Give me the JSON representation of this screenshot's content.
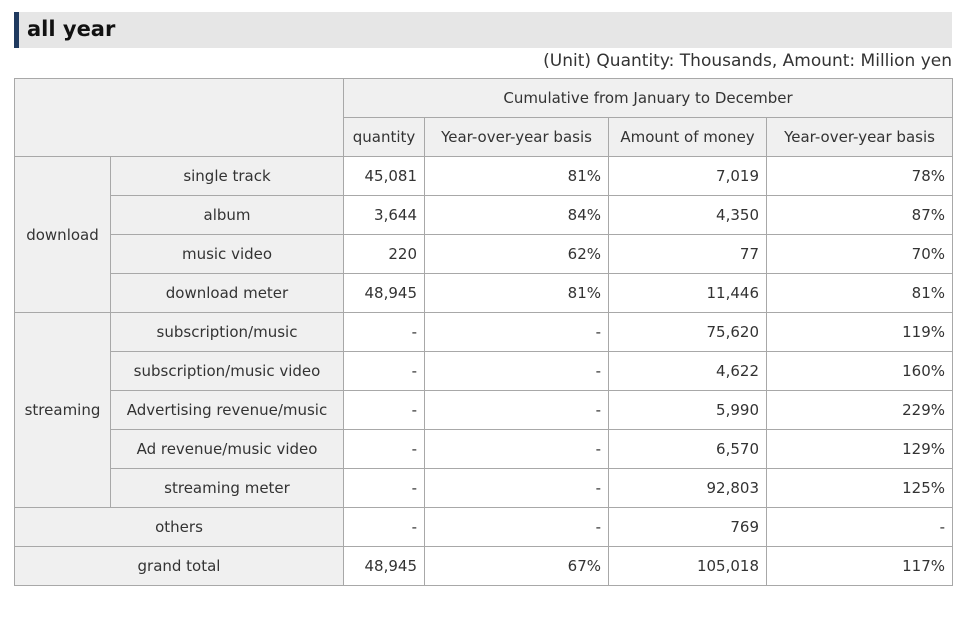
{
  "title": "all year",
  "unit_note": "(Unit) Quantity: Thousands, Amount: Million yen",
  "table": {
    "group_header": "Cumulative from January to December",
    "columns": [
      "quantity",
      "Year-over-year basis",
      "Amount of money",
      "Year-over-year basis"
    ],
    "download": {
      "label": "download",
      "rows": [
        {
          "label": "single track",
          "values": [
            "45,081",
            "81%",
            "7,019",
            "78%"
          ]
        },
        {
          "label": "album",
          "values": [
            "3,644",
            "84%",
            "4,350",
            "87%"
          ]
        },
        {
          "label": "music video",
          "values": [
            "220",
            "62%",
            "77",
            "70%"
          ]
        },
        {
          "label": "download meter",
          "values": [
            "48,945",
            "81%",
            "11,446",
            "81%"
          ]
        }
      ]
    },
    "streaming": {
      "label": "streaming",
      "rows": [
        {
          "label": "subscription/music",
          "values": [
            "-",
            "-",
            "75,620",
            "119%"
          ]
        },
        {
          "label": "subscription/music video",
          "values": [
            "-",
            "-",
            "4,622",
            "160%"
          ]
        },
        {
          "label": "Advertising revenue/music",
          "values": [
            "-",
            "-",
            "5,990",
            "229%"
          ]
        },
        {
          "label": "Ad revenue/music video",
          "values": [
            "-",
            "-",
            "6,570",
            "129%"
          ]
        },
        {
          "label": "streaming meter",
          "values": [
            "-",
            "-",
            "92,803",
            "125%"
          ]
        }
      ]
    },
    "others": {
      "label": "others",
      "values": [
        "-",
        "-",
        "769",
        "-"
      ]
    },
    "grand_total": {
      "label": "grand total",
      "values": [
        "48,945",
        "67%",
        "105,018",
        "117%"
      ]
    }
  }
}
